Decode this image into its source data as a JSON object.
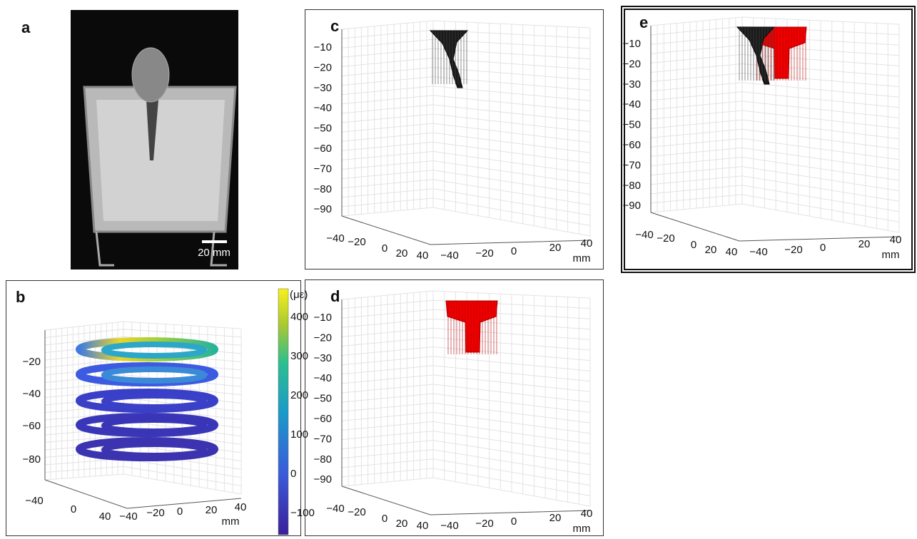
{
  "panels": {
    "a": {
      "label": "a",
      "scale_bar": "20 mm"
    },
    "b": {
      "label": "b",
      "z_ticks": [
        "−20",
        "−40",
        "−60",
        "−80"
      ],
      "x_ticks": [
        "−40",
        "0",
        "40"
      ],
      "y_ticks": [
        "−40",
        "−20",
        "0",
        "20",
        "40"
      ],
      "unit": "mm",
      "colorbar": {
        "label": "(με)",
        "ticks": [
          "400",
          "300",
          "200",
          "100",
          "0",
          "−100"
        ]
      }
    },
    "c": {
      "label": "c",
      "z_ticks": [
        "−10",
        "−20",
        "−30",
        "−40",
        "−50",
        "−60",
        "−70",
        "−80",
        "−90"
      ],
      "x_ticks": [
        "−40",
        "−20",
        "0",
        "20",
        "40"
      ],
      "y_ticks": [
        "−40",
        "−20",
        "0",
        "20",
        "40"
      ],
      "unit": "mm"
    },
    "d": {
      "label": "d",
      "z_ticks": [
        "−10",
        "−20",
        "−30",
        "−40",
        "−50",
        "−60",
        "−70",
        "−80",
        "−90"
      ],
      "x_ticks": [
        "−40",
        "−20",
        "0",
        "20",
        "40"
      ],
      "y_ticks": [
        "−40",
        "−20",
        "0",
        "20",
        "40"
      ],
      "unit": "mm"
    },
    "e": {
      "label": "e",
      "z_ticks": [
        "−10",
        "−20",
        "−30",
        "−40",
        "−50",
        "−60",
        "−70",
        "−80",
        "−90"
      ],
      "x_ticks": [
        "−40",
        "−20",
        "0",
        "20",
        "40"
      ],
      "y_ticks": [
        "−40",
        "−20",
        "0",
        "20",
        "40"
      ],
      "unit": "mm"
    }
  }
}
